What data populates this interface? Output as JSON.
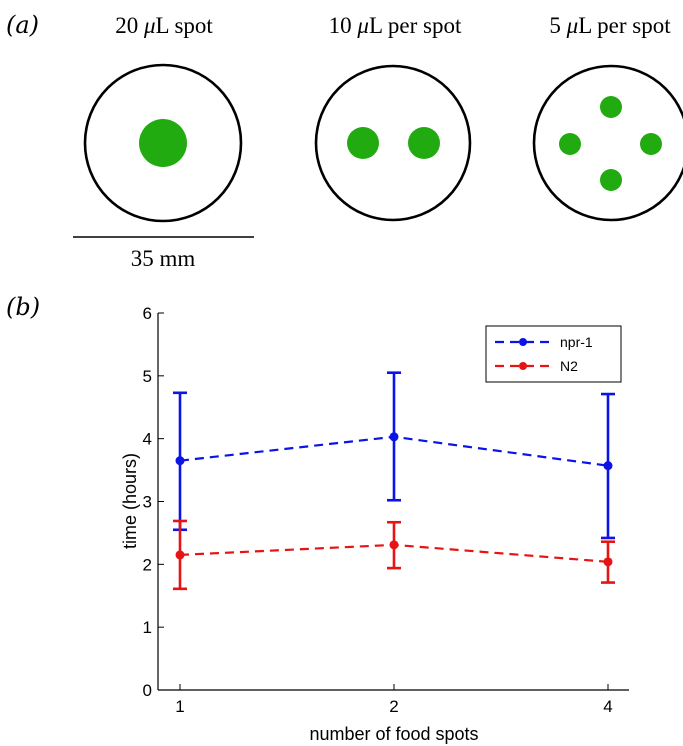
{
  "panel_a": {
    "label": "(a)",
    "dishes": [
      {
        "title_num": "20 ",
        "title_mu": "μ",
        "title_rest": "L spot",
        "spot_count": 1
      },
      {
        "title_num": "10 ",
        "title_mu": "μ",
        "title_rest": "L per spot",
        "spot_count": 2
      },
      {
        "title_num": "5 ",
        "title_mu": "μ",
        "title_rest": "L per spot",
        "spot_count": 4
      }
    ],
    "scale_bar_label": "35 mm",
    "dish_color": "#000000",
    "food_color": "#22aa11"
  },
  "panel_b": {
    "label": "(b)"
  },
  "chart_data": {
    "type": "line",
    "title": "",
    "xlabel": "number of food spots",
    "ylabel": "time (hours)",
    "categories": [
      "1",
      "2",
      "4"
    ],
    "ylim": [
      0,
      6
    ],
    "yticks": [
      "0",
      "1",
      "2",
      "3",
      "4",
      "5",
      "6"
    ],
    "grid": false,
    "legend_position": "top-right",
    "series": [
      {
        "name": "npr-1",
        "color": "#0a14e6",
        "line_style": "dashed",
        "values": [
          3.65,
          4.03,
          3.57
        ],
        "err_low": [
          2.55,
          3.02,
          2.42
        ],
        "err_high": [
          4.73,
          5.05,
          4.71
        ]
      },
      {
        "name": "N2",
        "color": "#e61414",
        "line_style": "dashed",
        "values": [
          2.15,
          2.31,
          2.04
        ],
        "err_low": [
          1.61,
          1.94,
          1.71
        ],
        "err_high": [
          2.69,
          2.67,
          2.36
        ]
      }
    ]
  }
}
